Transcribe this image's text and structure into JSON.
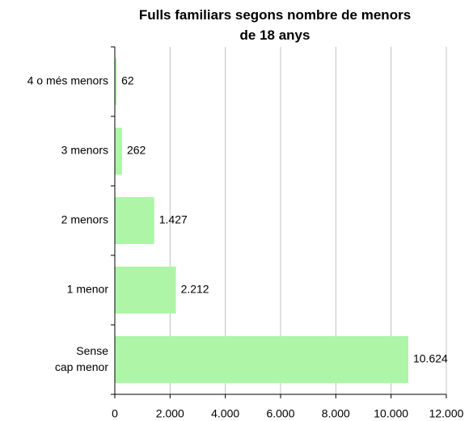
{
  "chart_data": {
    "type": "barh",
    "title": "Fulls familiars segons nombre de menors\nde 18 anys",
    "categories": [
      "4 o més menors",
      "3 menors",
      "2 menors",
      "1 menor",
      "Sense\ncap menor"
    ],
    "values": [
      62,
      262,
      1427,
      2212,
      10624
    ],
    "value_labels": [
      "62",
      "262",
      "1.427",
      "2.212",
      "10.624"
    ],
    "color": "#aef5a8",
    "xlim": [
      0,
      12000
    ],
    "xticks": [
      0,
      {
        "value": 2000,
        "label": "2.000"
      },
      {
        "value": 4000,
        "label": "4.000"
      },
      {
        "value": 6000,
        "label": "6.000"
      },
      {
        "value": 8000,
        "label": "8.000"
      },
      {
        "value": 10000,
        "label": "10.000"
      },
      {
        "value": 12000,
        "label": "12.000"
      }
    ],
    "grid": true
  }
}
